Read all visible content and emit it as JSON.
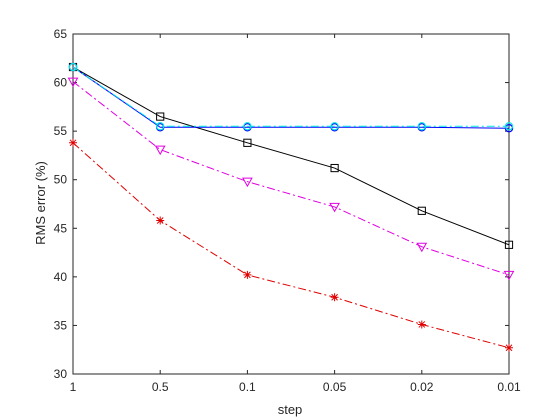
{
  "chart_data": {
    "type": "line",
    "title": "",
    "xlabel": "step",
    "ylabel": "RMS error (%)",
    "categories": [
      "1",
      "0.5",
      "0.1",
      "0.05",
      "0.02",
      "0.01"
    ],
    "ylim": [
      30,
      65
    ],
    "yticks": [
      30,
      35,
      40,
      45,
      50,
      55,
      60,
      65
    ],
    "grid": false,
    "legend": "none",
    "series": [
      {
        "color": "#000000",
        "dash": "solid",
        "marker": "square",
        "values": [
          61.6,
          56.5,
          53.8,
          51.2,
          46.8,
          43.3
        ]
      },
      {
        "color": "#0000ff",
        "dash": "solid",
        "marker": "circle",
        "values": [
          61.6,
          55.4,
          55.4,
          55.4,
          55.4,
          55.3
        ]
      },
      {
        "color": "#00e5e5",
        "dash": "dashdot",
        "marker": "circle",
        "values": [
          61.6,
          55.5,
          55.5,
          55.5,
          55.5,
          55.5
        ]
      },
      {
        "color": "#e000e0",
        "dash": "dashdot",
        "marker": "triangle-down",
        "values": [
          60.1,
          53.1,
          49.8,
          47.2,
          43.1,
          40.2
        ]
      },
      {
        "color": "#e00000",
        "dash": "dashdot",
        "marker": "asterisk",
        "values": [
          53.8,
          45.8,
          40.2,
          37.9,
          35.1,
          32.7
        ]
      }
    ]
  }
}
